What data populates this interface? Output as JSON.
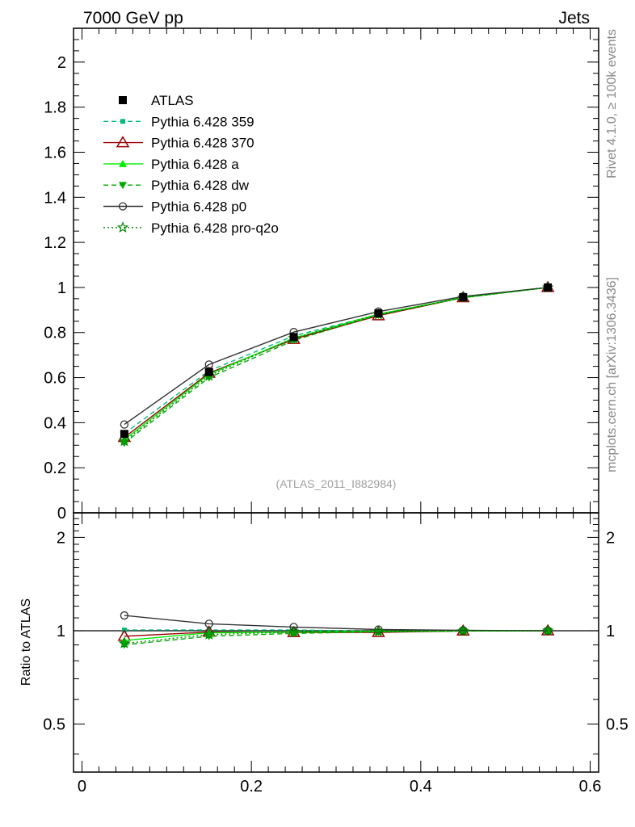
{
  "header": {
    "left_label": "7000 GeV pp",
    "right_label": "Jets"
  },
  "side_labels": {
    "rivet": "Rivet 4.1.0, ≥ 100k events",
    "mcplots": "mcplots.cern.ch [arXiv:1306.3436]"
  },
  "chart_data": [
    {
      "type": "line",
      "panel": "main",
      "title": "",
      "xlabel": "",
      "ylabel": "",
      "xlim": [
        -0.01,
        0.61
      ],
      "ylim": [
        0,
        2.15
      ],
      "x_ticks": [
        "0",
        "0.2",
        "0.4",
        "0.6"
      ],
      "y_ticks": [
        "0",
        "0.2",
        "0.4",
        "0.6",
        "0.8",
        "1",
        "1.2",
        "1.4",
        "1.6",
        "1.8",
        "2"
      ],
      "watermark": "(ATLAS_2011_I882984)",
      "legend_position": "top-left",
      "x": [
        0.05,
        0.15,
        0.25,
        0.35,
        0.45,
        0.55
      ],
      "series": [
        {
          "name": "ATLAS",
          "values": [
            0.35,
            0.625,
            0.78,
            0.885,
            0.957,
            1.0
          ],
          "color": "#000000",
          "marker": "square",
          "line": "none"
        },
        {
          "name": "Pythia 6.428 359",
          "values": [
            0.352,
            0.63,
            0.785,
            0.88,
            0.955,
            1.0
          ],
          "color": "#00bb77",
          "marker": "small-square",
          "line": "dashed"
        },
        {
          "name": "Pythia 6.428 370",
          "values": [
            0.335,
            0.62,
            0.77,
            0.875,
            0.955,
            1.0
          ],
          "color": "#990000",
          "marker": "open-triangle",
          "line": "solid"
        },
        {
          "name": "Pythia 6.428 a",
          "values": [
            0.325,
            0.615,
            0.775,
            0.882,
            0.955,
            1.0
          ],
          "color": "#00ee00",
          "marker": "triangle",
          "line": "solid"
        },
        {
          "name": "Pythia 6.428 dw",
          "values": [
            0.31,
            0.6,
            0.765,
            0.878,
            0.955,
            1.0
          ],
          "color": "#00aa00",
          "marker": "triangle-down",
          "line": "dashed"
        },
        {
          "name": "Pythia 6.428 p0",
          "values": [
            0.392,
            0.658,
            0.802,
            0.893,
            0.96,
            1.0
          ],
          "color": "#333333",
          "marker": "open-circle",
          "line": "solid"
        },
        {
          "name": "Pythia 6.428 pro-q2o",
          "values": [
            0.318,
            0.608,
            0.775,
            0.88,
            0.955,
            1.0
          ],
          "color": "#008800",
          "marker": "star",
          "line": "dotted"
        }
      ]
    },
    {
      "type": "line",
      "panel": "ratio",
      "title": "",
      "xlabel": "",
      "ylabel": "Ratio to ATLAS",
      "xlim": [
        -0.01,
        0.61
      ],
      "ylim": [
        0.35,
        2.4
      ],
      "x_ticks": [
        "0",
        "0.2",
        "0.4",
        "0.6"
      ],
      "y_ticks": [
        "0.5",
        "1",
        "2"
      ],
      "reference": 1,
      "x": [
        0.05,
        0.15,
        0.25,
        0.35,
        0.45,
        0.55
      ],
      "series": [
        {
          "name": "Pythia 6.428 359",
          "values": [
            1.005,
            1.005,
            1.006,
            0.995,
            0.998,
            1.0
          ]
        },
        {
          "name": "Pythia 6.428 370",
          "values": [
            0.96,
            0.99,
            0.987,
            0.988,
            0.998,
            1.0
          ]
        },
        {
          "name": "Pythia 6.428 a",
          "values": [
            0.93,
            0.985,
            0.99,
            0.996,
            0.998,
            1.0
          ]
        },
        {
          "name": "Pythia 6.428 dw",
          "values": [
            0.9,
            0.96,
            0.98,
            0.992,
            0.998,
            1.0
          ]
        },
        {
          "name": "Pythia 6.428 p0",
          "values": [
            1.12,
            1.053,
            1.028,
            1.009,
            1.003,
            1.0
          ]
        },
        {
          "name": "Pythia 6.428 pro-q2o",
          "values": [
            0.91,
            0.972,
            0.99,
            0.994,
            0.998,
            1.0
          ]
        }
      ]
    }
  ]
}
